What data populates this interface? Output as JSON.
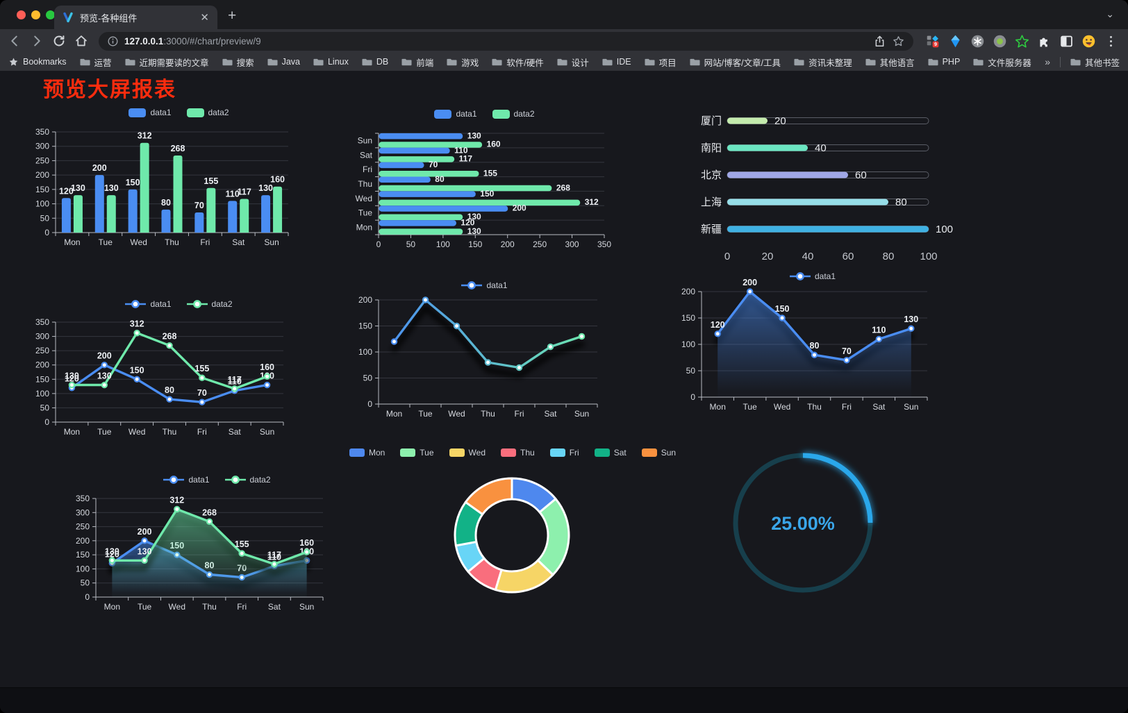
{
  "browser": {
    "tab_title": "预览-各种组件",
    "new_tab_glyph": "+",
    "url_host": "127.0.0.1",
    "url_path": ":3000/#/chart/preview/9",
    "extension_badge": "9",
    "bookmarks_label": "Bookmarks",
    "bookmarks": [
      "运营",
      "近期需要读的文章",
      "搜索",
      "Java",
      "Linux",
      "DB",
      "前端",
      "游戏",
      "软件/硬件",
      "设计",
      "IDE",
      "项目",
      "网站/博客/文章/工具",
      "资讯未整理",
      "其他语言",
      "PHP",
      "文件服务器"
    ],
    "bookmarks_overflow": "»",
    "other_bookmarks": "其他书签",
    "toolbar_icons": [
      "back-arrow",
      "forward-arrow",
      "reload",
      "home"
    ],
    "omnibox_icons": [
      "info",
      "share",
      "star"
    ],
    "extension_icons": [
      "grid-diamond-badge",
      "blue-kite",
      "command-circle",
      "green-dot-circle",
      "green-star",
      "puzzle",
      "split-square",
      "emoji-face",
      "menu-dots"
    ]
  },
  "page": {
    "title": "预览大屏报表",
    "title_color": "#fb2c0e"
  },
  "chart_data": [
    {
      "id": "grouped-bar",
      "type": "bar",
      "series_type": "bar",
      "categories": [
        "Mon",
        "Tue",
        "Wed",
        "Thu",
        "Fri",
        "Sat",
        "Sun"
      ],
      "series": [
        {
          "name": "data1",
          "color": "#4a8df2",
          "values": [
            120,
            200,
            150,
            80,
            70,
            110,
            130
          ]
        },
        {
          "name": "data2",
          "color": "#6fe9ab",
          "values": [
            130,
            130,
            312,
            268,
            155,
            117,
            160
          ]
        }
      ],
      "ylim": [
        0,
        350
      ],
      "yticks": [
        0,
        50,
        100,
        150,
        200,
        250,
        300,
        350
      ],
      "grid": true,
      "legend_pos": "top",
      "legend_symbol": "rect",
      "labels": true
    },
    {
      "id": "horizontal-bar",
      "type": "bar-horizontal",
      "categories": [
        "Mon",
        "Tue",
        "Wed",
        "Thu",
        "Fri",
        "Sat",
        "Sun"
      ],
      "series": [
        {
          "name": "data1",
          "color": "#4a8df2",
          "values": [
            120,
            200,
            150,
            80,
            70,
            110,
            130
          ]
        },
        {
          "name": "data2",
          "color": "#6fe9ab",
          "values": [
            130,
            130,
            312,
            268,
            155,
            117,
            160
          ]
        }
      ],
      "xlim": [
        0,
        350
      ],
      "xticks": [
        0,
        50,
        100,
        150,
        200,
        250,
        300,
        350
      ],
      "grid": true,
      "legend_pos": "top",
      "legend_symbol": "rect",
      "labels": true
    },
    {
      "id": "progress-bars",
      "type": "progress",
      "max": 100,
      "xticks": [
        0,
        20,
        40,
        60,
        80,
        100
      ],
      "items": [
        {
          "label": "厦门",
          "value": 20,
          "color": "#c4ebad"
        },
        {
          "label": "南阳",
          "value": 40,
          "color": "#6be6c1"
        },
        {
          "label": "北京",
          "value": 60,
          "color": "#a0a7e6"
        },
        {
          "label": "上海",
          "value": 80,
          "color": "#96dee8"
        },
        {
          "label": "新疆",
          "value": 100,
          "color": "#3fb1e3"
        }
      ]
    },
    {
      "id": "two-line",
      "type": "line",
      "categories": [
        "Mon",
        "Tue",
        "Wed",
        "Thu",
        "Fri",
        "Sat",
        "Sun"
      ],
      "series": [
        {
          "name": "data1",
          "color": "#4a8df2",
          "values": [
            120,
            200,
            150,
            80,
            70,
            110,
            130
          ]
        },
        {
          "name": "data2",
          "color": "#6fe9ab",
          "values": [
            130,
            130,
            312,
            268,
            155,
            117,
            160
          ]
        }
      ],
      "ylim": [
        0,
        350
      ],
      "yticks": [
        0,
        50,
        100,
        150,
        200,
        250,
        300,
        350
      ],
      "grid": true,
      "legend_pos": "top",
      "legend_symbol": "line",
      "labels": true,
      "shadow": false
    },
    {
      "id": "gradient-line",
      "type": "line",
      "categories": [
        "Mon",
        "Tue",
        "Wed",
        "Thu",
        "Fri",
        "Sat",
        "Sun"
      ],
      "series": [
        {
          "name": "data1",
          "color": "#4a8df2",
          "gradient": [
            "#4a8df2",
            "#6fe9ab"
          ],
          "values": [
            120,
            200,
            150,
            80,
            70,
            110,
            130
          ]
        }
      ],
      "ylim": [
        0,
        200
      ],
      "yticks": [
        0,
        50,
        100,
        150,
        200
      ],
      "grid": true,
      "legend_pos": "top",
      "legend_symbol": "line",
      "labels": false,
      "shadow": true
    },
    {
      "id": "area-single",
      "type": "line",
      "categories": [
        "Mon",
        "Tue",
        "Wed",
        "Thu",
        "Fri",
        "Sat",
        "Sun"
      ],
      "series": [
        {
          "name": "data1",
          "color": "#4a8df2",
          "area": true,
          "values": [
            120,
            200,
            150,
            80,
            70,
            110,
            130
          ]
        }
      ],
      "ylim": [
        0,
        200
      ],
      "yticks": [
        0,
        50,
        100,
        150,
        200
      ],
      "grid": true,
      "legend_pos": "top",
      "legend_symbol": "line",
      "labels": true,
      "shadow": true
    },
    {
      "id": "area-double",
      "type": "line",
      "categories": [
        "Mon",
        "Tue",
        "Wed",
        "Thu",
        "Fri",
        "Sat",
        "Sun"
      ],
      "series": [
        {
          "name": "data1",
          "color": "#4a8df2",
          "area": true,
          "values": [
            120,
            200,
            150,
            80,
            70,
            110,
            130
          ]
        },
        {
          "name": "data2",
          "color": "#6fe9ab",
          "area": true,
          "values": [
            130,
            130,
            312,
            268,
            155,
            117,
            160
          ]
        }
      ],
      "ylim": [
        0,
        350
      ],
      "yticks": [
        0,
        50,
        100,
        150,
        200,
        250,
        300,
        350
      ],
      "grid": true,
      "legend_pos": "top",
      "legend_symbol": "line",
      "labels": true,
      "shadow": true
    },
    {
      "id": "donut",
      "type": "donut",
      "labels": [
        "Mon",
        "Tue",
        "Wed",
        "Thu",
        "Fri",
        "Sat",
        "Sun"
      ],
      "values": [
        120,
        200,
        150,
        80,
        70,
        110,
        130
      ],
      "colors": [
        "#4e88ee",
        "#8df0ad",
        "#f6d566",
        "#f96e7d",
        "#68d5f6",
        "#12b287",
        "#f9913f"
      ],
      "border_color": "#ffffff",
      "legend_pos": "top"
    },
    {
      "id": "gauge",
      "type": "gauge",
      "percent": 25,
      "label": "25.00%",
      "arc_color": "#2aa7ea",
      "track_color": "#173f4c",
      "text_color": "#3aa6ea"
    }
  ]
}
